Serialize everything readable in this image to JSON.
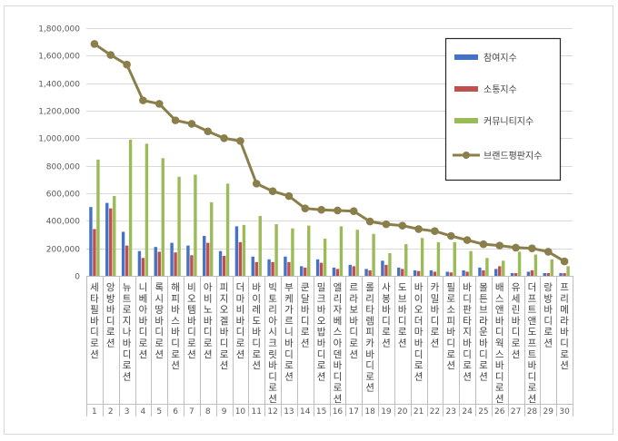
{
  "chart_data": {
    "type": "bar",
    "title": "",
    "xlabel": "",
    "ylabel": "",
    "ylim": [
      0,
      1800000
    ],
    "yticks": [
      "0",
      "200,000",
      "400,000",
      "600,000",
      "800,000",
      "1,000,000",
      "1,200,000",
      "1,400,000",
      "1,600,000",
      "1,800,000"
    ],
    "grid": true,
    "legend_position": "right",
    "categories": [
      "1",
      "2",
      "3",
      "4",
      "5",
      "6",
      "7",
      "8",
      "9",
      "10",
      "11",
      "12",
      "13",
      "14",
      "15",
      "16",
      "17",
      "18",
      "19",
      "20",
      "21",
      "22",
      "23",
      "24",
      "25",
      "26",
      "27",
      "28",
      "29",
      "30"
    ],
    "category_labels": [
      "세타필바디로션",
      "앙방바디로션",
      "뉴트로지나바디로션",
      "니베아바디로션",
      "록시땅바디로션",
      "해피바스바디로션",
      "비오템바디로션",
      "아비노바디로션",
      "피지오겔바디로션",
      "더마비바디로션",
      "바이레도바디로션",
      "빅토리아시크릿바디로션",
      "부케가르니바디로션",
      "쿤달바디로션",
      "밀크바오밥바디로션",
      "엘리자베스아덴바디로션",
      "르라보바디로션",
      "롤리타렘피카바디로션",
      "사봉바디로션",
      "도브바디로션",
      "바이오더마바디로션",
      "카밀바디로션",
      "필로소피바디로션",
      "바디판타지바디로션",
      "몰튼브라운바디로션",
      "배스앤바디웍스바디로션",
      "유세린바디로션",
      "더프트앤도프트바디로션",
      "랑방바디로션",
      "프리메라바디로션"
    ],
    "series": [
      {
        "name": "참여지수",
        "type": "bar",
        "color": "#4472c4",
        "values": [
          500000,
          530000,
          320000,
          180000,
          210000,
          240000,
          220000,
          290000,
          180000,
          360000,
          140000,
          120000,
          140000,
          70000,
          120000,
          60000,
          80000,
          50000,
          110000,
          60000,
          40000,
          40000,
          30000,
          40000,
          60000,
          50000,
          20000,
          30000,
          20000,
          20000
        ]
      },
      {
        "name": "소통지수",
        "type": "bar",
        "color": "#c0504d",
        "values": [
          340000,
          490000,
          220000,
          130000,
          175000,
          170000,
          150000,
          240000,
          145000,
          245000,
          100000,
          100000,
          100000,
          60000,
          95000,
          50000,
          70000,
          40000,
          80000,
          50000,
          35000,
          30000,
          25000,
          30000,
          40000,
          70000,
          20000,
          40000,
          20000,
          20000
        ]
      },
      {
        "name": "커뮤니티지수",
        "type": "bar",
        "color": "#9bbb59",
        "values": [
          845000,
          580000,
          990000,
          960000,
          855000,
          720000,
          735000,
          535000,
          670000,
          370000,
          435000,
          375000,
          345000,
          365000,
          270000,
          360000,
          335000,
          305000,
          165000,
          230000,
          275000,
          245000,
          245000,
          180000,
          130000,
          110000,
          175000,
          155000,
          120000,
          70000
        ]
      },
      {
        "name": "브랜드평판지수",
        "type": "line",
        "color": "#8a7f4b",
        "values": [
          1685000,
          1605000,
          1535000,
          1275000,
          1250000,
          1130000,
          1105000,
          1050000,
          1000000,
          980000,
          670000,
          615000,
          580000,
          490000,
          480000,
          475000,
          470000,
          395000,
          375000,
          365000,
          340000,
          325000,
          290000,
          260000,
          230000,
          220000,
          205000,
          200000,
          175000,
          105000
        ]
      }
    ]
  }
}
